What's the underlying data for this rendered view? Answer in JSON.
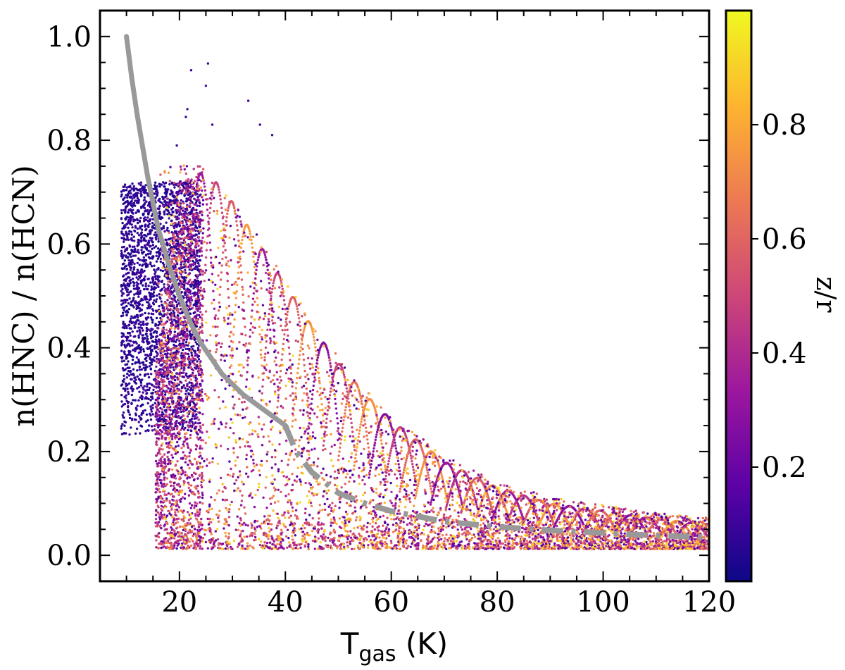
{
  "chart_data": {
    "type": "scatter",
    "xlabel_main": "T",
    "xlabel_sub": "gas",
    "xlabel_unit": " (K)",
    "ylabel": "n(HNC) / n(HCN)",
    "xlim": [
      5,
      120
    ],
    "ylim": [
      -0.05,
      1.05
    ],
    "x_ticks": [
      20,
      40,
      60,
      80,
      100,
      120
    ],
    "x_tick_labels": [
      "20",
      "40",
      "60",
      "80",
      "100",
      "120"
    ],
    "y_ticks": [
      0.0,
      0.2,
      0.4,
      0.6,
      0.8,
      1.0
    ],
    "y_tick_labels": [
      "0.0",
      "0.2",
      "0.4",
      "0.6",
      "0.8",
      "1.0"
    ],
    "colorbar": {
      "label": "z/r",
      "range": [
        0.0,
        1.0
      ],
      "ticks": [
        0.2,
        0.4,
        0.6,
        0.8
      ],
      "tick_labels": [
        "0.2",
        "0.4",
        "0.6",
        "0.8"
      ],
      "colormap": [
        "#0d0887",
        "#5c01a6",
        "#9c179e",
        "#cc4778",
        "#ed7953",
        "#fdb42f",
        "#f0f921"
      ]
    },
    "reference_curve": {
      "color": "#999999",
      "solid_segment": {
        "x": [
          10,
          11,
          12,
          13,
          14,
          15,
          16,
          18,
          20,
          22,
          24,
          26,
          28,
          30,
          32,
          34,
          36,
          38,
          40
        ],
        "y": [
          1.0,
          0.92,
          0.85,
          0.79,
          0.73,
          0.68,
          0.63,
          0.56,
          0.5,
          0.45,
          0.41,
          0.38,
          0.35,
          0.33,
          0.31,
          0.295,
          0.28,
          0.265,
          0.25
        ]
      },
      "dashed_segment": {
        "x": [
          40,
          42,
          45,
          50,
          55,
          60,
          65,
          70,
          80,
          90,
          100,
          110,
          120
        ],
        "y": [
          0.25,
          0.2,
          0.16,
          0.12,
          0.1,
          0.085,
          0.075,
          0.065,
          0.055,
          0.048,
          0.043,
          0.038,
          0.035
        ]
      }
    },
    "point_cloud": {
      "description_series": "model grid points colored by z/r",
      "low_zr_band": {
        "x_range": [
          9,
          24
        ],
        "y_range": [
          0.23,
          0.72
        ]
      },
      "upper_envelope": {
        "x": [
          23,
          26,
          30,
          35,
          40,
          45,
          50,
          55,
          60,
          65,
          70,
          80,
          90,
          100,
          110,
          120
        ],
        "y": [
          0.74,
          0.73,
          0.68,
          0.6,
          0.52,
          0.44,
          0.37,
          0.31,
          0.26,
          0.22,
          0.18,
          0.13,
          0.1,
          0.085,
          0.07,
          0.06
        ]
      },
      "isolated_points": {
        "x": [
          22.2,
          25.4,
          25.0,
          21.5,
          21.2,
          33.0,
          35.2,
          37.5,
          26.2,
          19.5
        ],
        "y": [
          0.935,
          0.948,
          0.905,
          0.86,
          0.845,
          0.876,
          0.83,
          0.81,
          0.83,
          0.79
        ],
        "zr": [
          0.1,
          0.1,
          0.1,
          0.1,
          0.1,
          0.1,
          0.1,
          0.1,
          0.1,
          0.1
        ]
      }
    }
  }
}
